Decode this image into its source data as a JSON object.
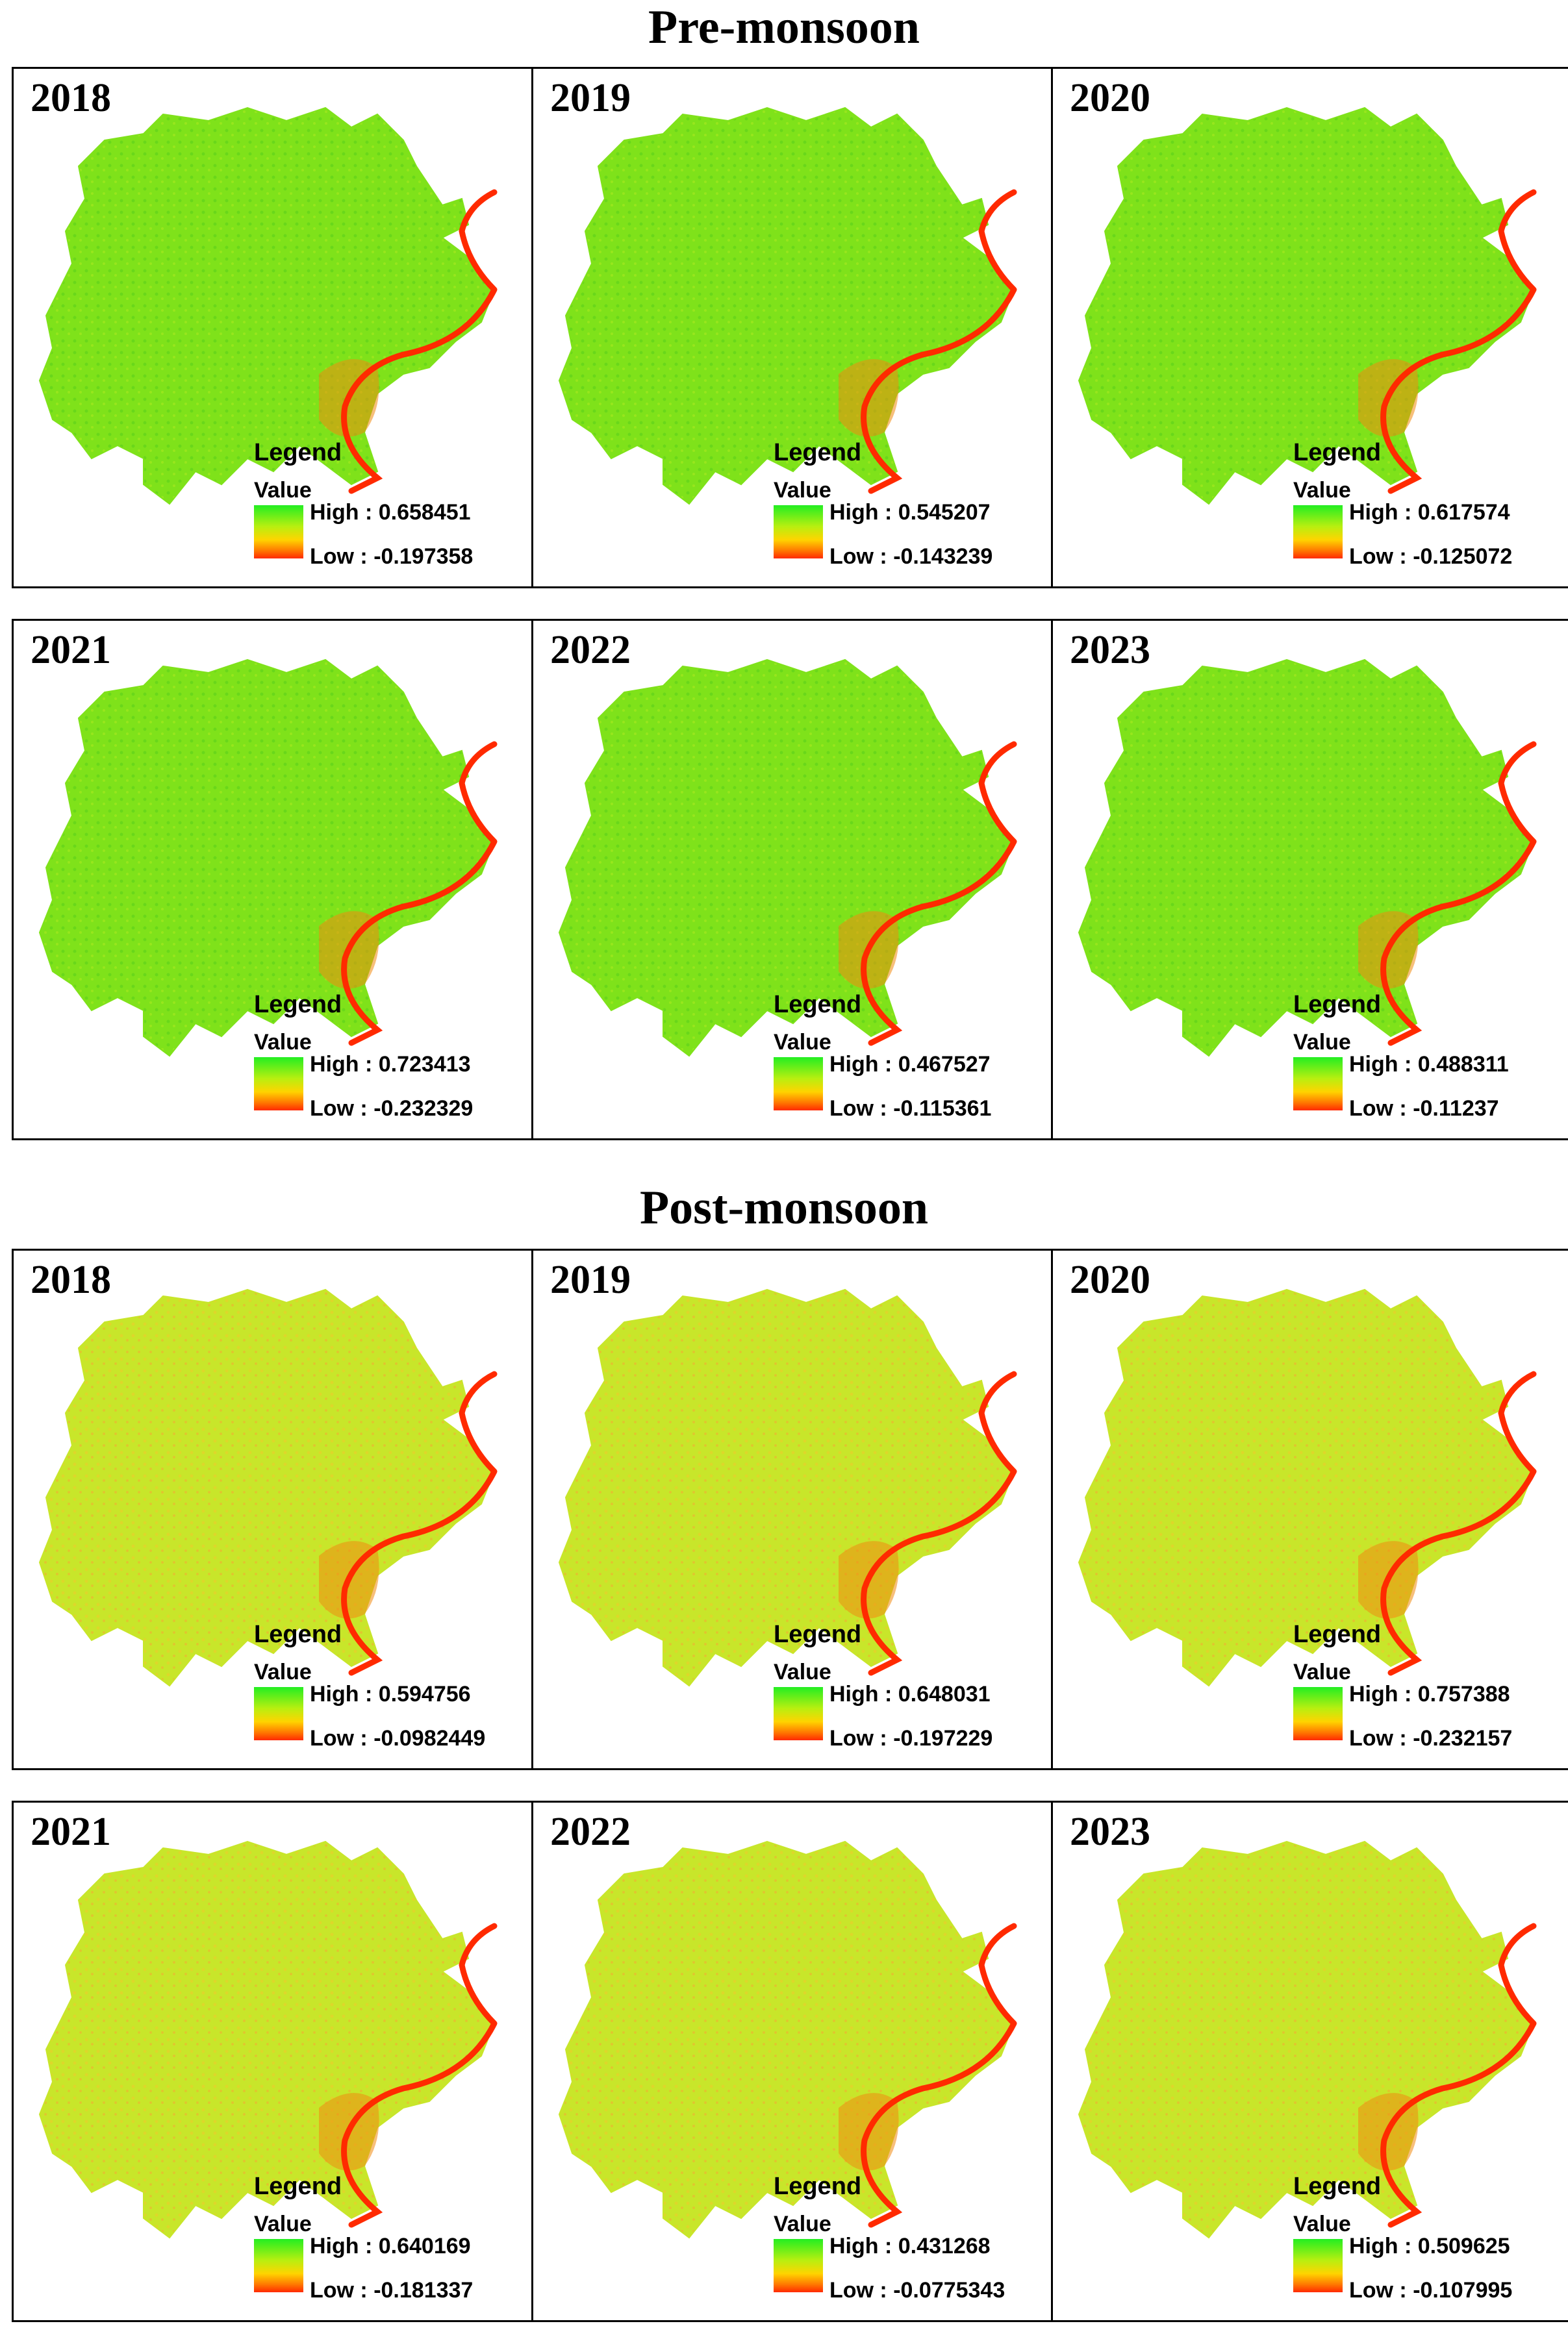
{
  "sections": [
    {
      "title": "Pre-monsoon",
      "palette": "pre",
      "panels": [
        {
          "year": "2018",
          "legend": "Legend",
          "value_label": "Value",
          "high": "High : 0.658451",
          "low": "Low : -0.197358"
        },
        {
          "year": "2019",
          "legend": "Legend",
          "value_label": "Value",
          "high": "High : 0.545207",
          "low": "Low : -0.143239"
        },
        {
          "year": "2020",
          "legend": "Legend",
          "value_label": "Value",
          "high": "High : 0.617574",
          "low": "Low : -0.125072"
        },
        {
          "year": "2021",
          "legend": "Legend",
          "value_label": "Value",
          "high": "High : 0.723413",
          "low": "Low : -0.232329"
        },
        {
          "year": "2022",
          "legend": "Legend",
          "value_label": "Value",
          "high": "High : 0.467527",
          "low": "Low : -0.115361"
        },
        {
          "year": "2023",
          "legend": "Legend",
          "value_label": "Value",
          "high": "High : 0.488311",
          "low": "Low : -0.11237"
        }
      ]
    },
    {
      "title": "Post-monsoon",
      "palette": "post",
      "panels": [
        {
          "year": "2018",
          "legend": "Legend",
          "value_label": "Value",
          "high": "High : 0.594756",
          "low": "Low : -0.0982449"
        },
        {
          "year": "2019",
          "legend": "Legend",
          "value_label": "Value",
          "high": "High : 0.648031",
          "low": "Low : -0.197229"
        },
        {
          "year": "2020",
          "legend": "Legend",
          "value_label": "Value",
          "high": "High : 0.757388",
          "low": "Low : -0.232157"
        },
        {
          "year": "2021",
          "legend": "Legend",
          "value_label": "Value",
          "high": "High : 0.640169",
          "low": "Low : -0.181337"
        },
        {
          "year": "2022",
          "legend": "Legend",
          "value_label": "Value",
          "high": "High : 0.431268",
          "low": "Low : -0.0775343"
        },
        {
          "year": "2023",
          "legend": "Legend",
          "value_label": "Value",
          "high": "High : 0.509625",
          "low": "Low : -0.107995"
        }
      ]
    }
  ],
  "colors": {
    "pre_fill": "#7fe21a",
    "post_fill": "#c8e62a",
    "river": "#ff2a00",
    "urban": "#f08a10",
    "ramp_high": "#22ee22",
    "ramp_low": "#ff2a00"
  }
}
